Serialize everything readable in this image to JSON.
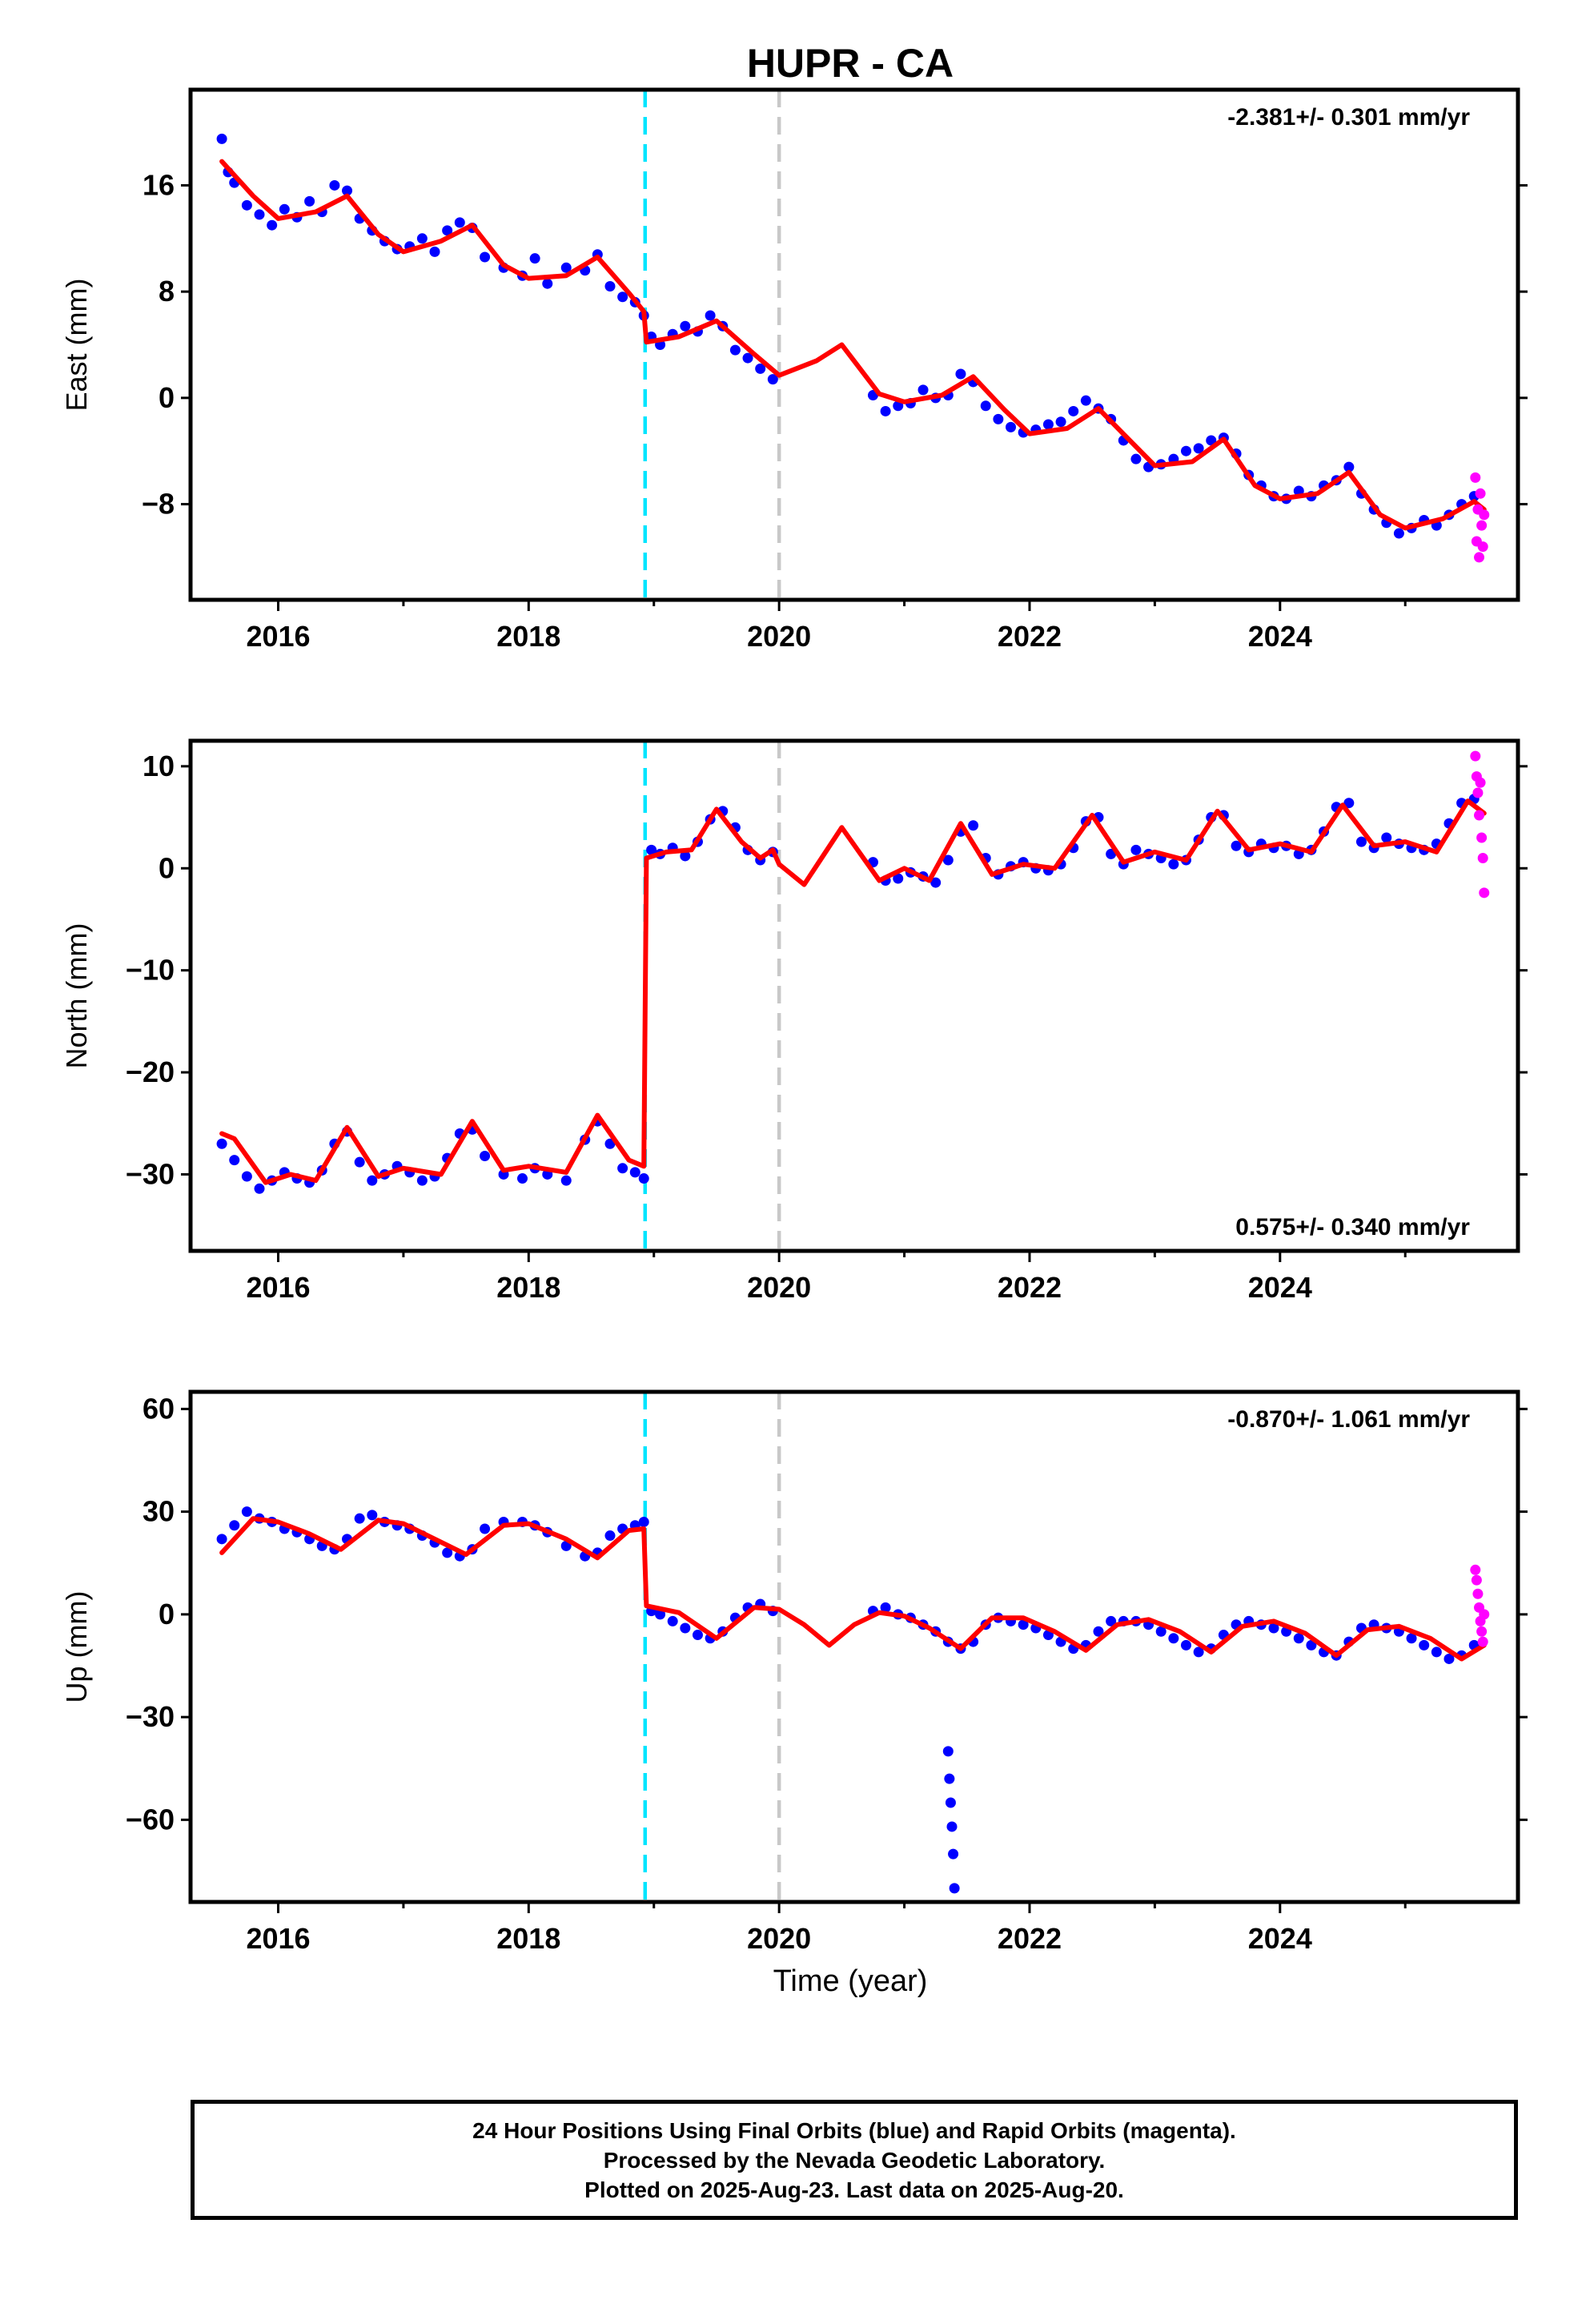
{
  "title": "HUPR - CA",
  "xlabel": "Time (year)",
  "footer": {
    "line1": "24 Hour Positions Using Final Orbits (blue) and Rapid Orbits (magenta).",
    "line2": "Processed by the Nevada Geodetic Laboratory.",
    "line3": "Plotted on 2025-Aug-23. Last data on 2025-Aug-20."
  },
  "colors": {
    "final_points": "#0000ff",
    "rapid_points": "#ff00ff",
    "model": "#ff0000",
    "event_line": "#00e5ff",
    "reference_line": "#c8c8c8"
  },
  "chart_data": [
    {
      "type": "scatter",
      "component": "east",
      "ylabel": "East (mm)",
      "rate_label": "-2.381+/- 0.301 mm/yr",
      "rate_label_position": "top-right",
      "xlim": [
        2015.3,
        2025.9
      ],
      "ylim": [
        -15.2,
        23.2
      ],
      "yticks": [
        -8,
        0,
        8,
        16
      ],
      "ytick_labels": [
        "−8",
        "0",
        "8",
        "16"
      ],
      "xticks": [
        2016,
        2018,
        2020,
        2022,
        2024
      ],
      "xtick_labels": [
        "2016",
        "2018",
        "2020",
        "2022",
        "2024"
      ],
      "event_lines": [
        {
          "x": 2018.93,
          "color": "cyan",
          "style": "dashed"
        },
        {
          "x": 2020.0,
          "color": "gray",
          "style": "dashed"
        }
      ],
      "model": {
        "x": [
          2015.55,
          2015.8,
          2016.0,
          2016.3,
          2016.55,
          2016.8,
          2017.0,
          2017.3,
          2017.55,
          2017.8,
          2018.0,
          2018.3,
          2018.55,
          2018.8,
          2018.92,
          2018.94,
          2019.2,
          2019.5,
          2019.8,
          2020.0,
          2020.3,
          2020.5,
          2020.8,
          2021.0,
          2021.3,
          2021.55,
          2021.8,
          2022.0,
          2022.3,
          2022.55,
          2022.8,
          2023.0,
          2023.3,
          2023.55,
          2023.8,
          2024.0,
          2024.3,
          2024.55,
          2024.8,
          2025.0,
          2025.3,
          2025.55,
          2025.63
        ],
        "y": [
          17.8,
          15.2,
          13.5,
          14.0,
          15.2,
          12.3,
          11.0,
          11.8,
          13.0,
          10.0,
          9.0,
          9.2,
          10.6,
          7.9,
          6.5,
          4.2,
          4.6,
          5.8,
          3.3,
          1.7,
          2.8,
          4.0,
          0.3,
          -0.3,
          0.2,
          1.6,
          -0.9,
          -2.7,
          -2.3,
          -0.8,
          -3.2,
          -5.1,
          -4.8,
          -3.1,
          -6.6,
          -7.6,
          -7.2,
          -5.6,
          -8.8,
          -9.8,
          -9.1,
          -7.8,
          -8.4
        ]
      },
      "final_orbits": {
        "x": [
          2015.55,
          2015.6,
          2015.65,
          2015.75,
          2015.85,
          2015.95,
          2016.05,
          2016.15,
          2016.25,
          2016.35,
          2016.45,
          2016.55,
          2016.65,
          2016.75,
          2016.85,
          2016.95,
          2017.05,
          2017.15,
          2017.25,
          2017.35,
          2017.45,
          2017.55,
          2017.65,
          2017.8,
          2017.95,
          2018.05,
          2018.15,
          2018.3,
          2018.45,
          2018.55,
          2018.65,
          2018.75,
          2018.85,
          2018.92,
          2018.98,
          2019.05,
          2019.15,
          2019.25,
          2019.35,
          2019.45,
          2019.55,
          2019.65,
          2019.75,
          2019.85,
          2019.95,
          2020.75,
          2020.85,
          2020.95,
          2021.05,
          2021.15,
          2021.25,
          2021.35,
          2021.45,
          2021.55,
          2021.65,
          2021.75,
          2021.85,
          2021.95,
          2022.05,
          2022.15,
          2022.25,
          2022.35,
          2022.45,
          2022.55,
          2022.65,
          2022.75,
          2022.85,
          2022.95,
          2023.05,
          2023.15,
          2023.25,
          2023.35,
          2023.45,
          2023.55,
          2023.65,
          2023.75,
          2023.85,
          2023.95,
          2024.05,
          2024.15,
          2024.25,
          2024.35,
          2024.45,
          2024.55,
          2024.65,
          2024.75,
          2024.85,
          2024.95,
          2025.05,
          2025.15,
          2025.25,
          2025.35,
          2025.45,
          2025.55
        ],
        "y": [
          19.5,
          17.0,
          16.2,
          14.5,
          13.8,
          13.0,
          14.2,
          13.6,
          14.8,
          14.0,
          16.0,
          15.6,
          13.5,
          12.6,
          11.8,
          11.2,
          11.4,
          12.0,
          11.0,
          12.6,
          13.2,
          12.8,
          10.6,
          9.8,
          9.2,
          10.5,
          8.6,
          9.8,
          9.6,
          10.8,
          8.4,
          7.6,
          7.2,
          6.2,
          4.6,
          4.0,
          4.8,
          5.4,
          5.0,
          6.2,
          5.4,
          3.6,
          3.0,
          2.2,
          1.4,
          0.2,
          -1.0,
          -0.6,
          -0.4,
          0.6,
          0.0,
          0.2,
          1.8,
          1.2,
          -0.6,
          -1.6,
          -2.2,
          -2.6,
          -2.4,
          -2.0,
          -1.8,
          -1.0,
          -0.2,
          -0.8,
          -1.6,
          -3.2,
          -4.6,
          -5.2,
          -5.0,
          -4.6,
          -4.0,
          -3.8,
          -3.2,
          -3.0,
          -4.2,
          -5.8,
          -6.6,
          -7.4,
          -7.6,
          -7.0,
          -7.4,
          -6.6,
          -6.2,
          -5.2,
          -7.2,
          -8.4,
          -9.4,
          -10.2,
          -9.8,
          -9.2,
          -9.6,
          -8.8,
          -8.0,
          -7.4
        ]
      },
      "rapid_orbits": {
        "x": [
          2025.56,
          2025.57,
          2025.58,
          2025.59,
          2025.6,
          2025.61,
          2025.62,
          2025.63
        ],
        "y": [
          -6.0,
          -10.8,
          -8.4,
          -12.0,
          -7.2,
          -9.6,
          -11.2,
          -8.8
        ]
      }
    },
    {
      "type": "scatter",
      "component": "north",
      "ylabel": "North (mm)",
      "rate_label": "0.575+/- 0.340 mm/yr",
      "rate_label_position": "bottom-right",
      "xlim": [
        2015.3,
        2025.9
      ],
      "ylim": [
        -37.5,
        12.5
      ],
      "yticks": [
        -30,
        -20,
        -10,
        0,
        10
      ],
      "ytick_labels": [
        "−30",
        "−20",
        "−10",
        "0",
        "10"
      ],
      "xticks": [
        2016,
        2018,
        2020,
        2022,
        2024
      ],
      "xtick_labels": [
        "2016",
        "2018",
        "2020",
        "2022",
        "2024"
      ],
      "event_lines": [
        {
          "x": 2018.93,
          "color": "cyan",
          "style": "dashed"
        },
        {
          "x": 2020.0,
          "color": "gray",
          "style": "dashed"
        }
      ],
      "model": {
        "x": [
          2015.55,
          2015.65,
          2015.9,
          2016.1,
          2016.3,
          2016.55,
          2016.8,
          2017.0,
          2017.3,
          2017.55,
          2017.8,
          2018.0,
          2018.3,
          2018.55,
          2018.8,
          2018.92,
          2018.94,
          2019.1,
          2019.3,
          2019.5,
          2019.7,
          2019.85,
          2019.95,
          2020.0,
          2020.2,
          2020.5,
          2020.8,
          2021.0,
          2021.2,
          2021.45,
          2021.7,
          2021.95,
          2022.2,
          2022.5,
          2022.75,
          2023.0,
          2023.25,
          2023.5,
          2023.75,
          2024.0,
          2024.25,
          2024.5,
          2024.75,
          2025.0,
          2025.25,
          2025.5,
          2025.63
        ],
        "y": [
          -26.0,
          -26.5,
          -30.8,
          -30.0,
          -30.6,
          -25.4,
          -30.2,
          -29.4,
          -30.0,
          -24.8,
          -29.6,
          -29.2,
          -29.8,
          -24.2,
          -28.6,
          -29.2,
          1.0,
          1.6,
          1.8,
          5.8,
          2.6,
          1.0,
          1.8,
          0.4,
          -1.6,
          4.0,
          -1.2,
          0.0,
          -1.2,
          4.4,
          -0.6,
          0.4,
          0.0,
          5.2,
          0.6,
          1.6,
          0.8,
          5.6,
          1.8,
          2.4,
          1.6,
          6.2,
          2.2,
          2.6,
          1.6,
          6.6,
          5.4
        ]
      },
      "final_orbits": {
        "x": [
          2015.55,
          2015.65,
          2015.75,
          2015.85,
          2015.95,
          2016.05,
          2016.15,
          2016.25,
          2016.35,
          2016.45,
          2016.55,
          2016.65,
          2016.75,
          2016.85,
          2016.95,
          2017.05,
          2017.15,
          2017.25,
          2017.35,
          2017.45,
          2017.55,
          2017.65,
          2017.8,
          2017.95,
          2018.05,
          2018.15,
          2018.3,
          2018.45,
          2018.55,
          2018.65,
          2018.75,
          2018.85,
          2018.92,
          2018.98,
          2019.05,
          2019.15,
          2019.25,
          2019.35,
          2019.45,
          2019.55,
          2019.65,
          2019.75,
          2019.85,
          2019.95,
          2020.75,
          2020.85,
          2020.95,
          2021.05,
          2021.15,
          2021.25,
          2021.35,
          2021.45,
          2021.55,
          2021.65,
          2021.75,
          2021.85,
          2021.95,
          2022.05,
          2022.15,
          2022.25,
          2022.35,
          2022.45,
          2022.55,
          2022.65,
          2022.75,
          2022.85,
          2022.95,
          2023.05,
          2023.15,
          2023.25,
          2023.35,
          2023.45,
          2023.55,
          2023.65,
          2023.75,
          2023.85,
          2023.95,
          2024.05,
          2024.15,
          2024.25,
          2024.35,
          2024.45,
          2024.55,
          2024.65,
          2024.75,
          2024.85,
          2024.95,
          2025.05,
          2025.15,
          2025.25,
          2025.35,
          2025.45,
          2025.55
        ],
        "y": [
          -27.0,
          -28.6,
          -30.2,
          -31.4,
          -30.6,
          -29.8,
          -30.4,
          -30.8,
          -29.6,
          -27.0,
          -25.8,
          -28.8,
          -30.6,
          -30.0,
          -29.2,
          -29.8,
          -30.6,
          -30.2,
          -28.4,
          -26.0,
          -25.6,
          -28.2,
          -30.0,
          -30.4,
          -29.4,
          -30.0,
          -30.6,
          -26.6,
          -24.8,
          -27.0,
          -29.4,
          -29.8,
          -30.4,
          1.8,
          1.4,
          2.0,
          1.2,
          2.6,
          4.8,
          5.6,
          4.0,
          1.8,
          0.8,
          1.6,
          0.6,
          -1.2,
          -1.0,
          -0.4,
          -0.8,
          -1.4,
          0.8,
          3.6,
          4.2,
          1.0,
          -0.6,
          0.2,
          0.6,
          0.0,
          -0.2,
          0.4,
          2.0,
          4.6,
          5.0,
          1.4,
          0.4,
          1.8,
          1.4,
          1.0,
          0.4,
          0.8,
          2.8,
          5.0,
          5.2,
          2.2,
          1.6,
          2.4,
          2.0,
          2.2,
          1.4,
          1.8,
          3.6,
          6.0,
          6.4,
          2.6,
          2.0,
          3.0,
          2.4,
          2.0,
          1.8,
          2.4,
          4.4,
          6.4,
          6.8
        ]
      },
      "rapid_orbits": {
        "x": [
          2025.56,
          2025.57,
          2025.58,
          2025.59,
          2025.6,
          2025.61,
          2025.62,
          2025.63
        ],
        "y": [
          11.0,
          9.0,
          7.4,
          5.2,
          8.4,
          3.0,
          1.0,
          -2.4
        ]
      }
    },
    {
      "type": "scatter",
      "component": "up",
      "ylabel": "Up (mm)",
      "rate_label": "-0.870+/- 1.061 mm/yr",
      "rate_label_position": "top-right",
      "xlim": [
        2015.3,
        2025.9
      ],
      "ylim": [
        -84.0,
        65.0
      ],
      "yticks": [
        -60,
        -30,
        0,
        30,
        60
      ],
      "ytick_labels": [
        "−60",
        "−30",
        "0",
        "30",
        "60"
      ],
      "xticks": [
        2016,
        2018,
        2020,
        2022,
        2024
      ],
      "xtick_labels": [
        "2016",
        "2018",
        "2020",
        "2022",
        "2024"
      ],
      "event_lines": [
        {
          "x": 2018.93,
          "color": "cyan",
          "style": "dashed"
        },
        {
          "x": 2020.0,
          "color": "gray",
          "style": "dashed"
        }
      ],
      "model": {
        "x": [
          2015.55,
          2015.8,
          2016.0,
          2016.25,
          2016.5,
          2016.8,
          2017.0,
          2017.25,
          2017.5,
          2017.8,
          2018.0,
          2018.3,
          2018.55,
          2018.8,
          2018.92,
          2018.94,
          2019.2,
          2019.5,
          2019.8,
          2020.0,
          2020.2,
          2020.4,
          2020.6,
          2020.8,
          2021.0,
          2021.2,
          2021.45,
          2021.7,
          2021.95,
          2022.2,
          2022.45,
          2022.7,
          2022.95,
          2023.2,
          2023.45,
          2023.7,
          2023.95,
          2024.2,
          2024.45,
          2024.7,
          2024.95,
          2025.2,
          2025.45,
          2025.63
        ],
        "y": [
          18.0,
          28.0,
          27.0,
          23.5,
          19.0,
          27.5,
          26.5,
          22.0,
          17.5,
          26.0,
          26.5,
          22.0,
          16.5,
          24.5,
          25.0,
          2.5,
          0.5,
          -7.0,
          2.0,
          1.5,
          -3.0,
          -9.0,
          -3.0,
          0.5,
          -0.5,
          -4.0,
          -10.0,
          -1.0,
          -1.0,
          -5.0,
          -10.5,
          -3.0,
          -1.5,
          -5.0,
          -11.0,
          -3.5,
          -2.0,
          -5.5,
          -12.0,
          -4.5,
          -3.5,
          -7.0,
          -13.0,
          -9.0
        ]
      },
      "final_orbits": {
        "x": [
          2015.55,
          2015.65,
          2015.75,
          2015.85,
          2015.95,
          2016.05,
          2016.15,
          2016.25,
          2016.35,
          2016.45,
          2016.55,
          2016.65,
          2016.75,
          2016.85,
          2016.95,
          2017.05,
          2017.15,
          2017.25,
          2017.35,
          2017.45,
          2017.55,
          2017.65,
          2017.8,
          2017.95,
          2018.05,
          2018.15,
          2018.3,
          2018.45,
          2018.55,
          2018.65,
          2018.75,
          2018.85,
          2018.92,
          2018.98,
          2019.05,
          2019.15,
          2019.25,
          2019.35,
          2019.45,
          2019.55,
          2019.65,
          2019.75,
          2019.85,
          2019.95,
          2020.75,
          2020.85,
          2020.95,
          2021.05,
          2021.15,
          2021.25,
          2021.35,
          2021.45,
          2021.55,
          2021.65,
          2021.75,
          2021.85,
          2021.95,
          2022.05,
          2022.15,
          2022.25,
          2022.35,
          2022.45,
          2022.55,
          2022.65,
          2022.75,
          2022.85,
          2022.95,
          2023.05,
          2023.15,
          2023.25,
          2023.35,
          2023.45,
          2023.55,
          2023.65,
          2023.75,
          2023.85,
          2023.95,
          2024.05,
          2024.15,
          2024.25,
          2024.35,
          2024.45,
          2024.55,
          2024.65,
          2024.75,
          2024.85,
          2024.95,
          2025.05,
          2025.15,
          2025.25,
          2025.35,
          2025.45,
          2025.55,
          2021.35,
          2021.36,
          2021.37,
          2021.38,
          2021.39,
          2021.4
        ],
        "y": [
          22.0,
          26.0,
          30.0,
          28.0,
          27.0,
          25.0,
          24.0,
          22.0,
          20.0,
          19.0,
          22.0,
          28.0,
          29.0,
          27.0,
          26.0,
          25.0,
          23.0,
          21.0,
          18.0,
          17.0,
          19.0,
          25.0,
          27.0,
          27.0,
          26.0,
          24.0,
          20.0,
          17.0,
          18.0,
          23.0,
          25.0,
          26.0,
          27.0,
          1.0,
          0.0,
          -2.0,
          -4.0,
          -6.0,
          -7.0,
          -5.0,
          -1.0,
          2.0,
          3.0,
          1.0,
          1.0,
          2.0,
          0.0,
          -1.0,
          -3.0,
          -5.0,
          -8.0,
          -10.0,
          -8.0,
          -3.0,
          -1.0,
          -2.0,
          -3.0,
          -4.0,
          -6.0,
          -8.0,
          -10.0,
          -9.0,
          -5.0,
          -2.0,
          -2.0,
          -2.0,
          -3.0,
          -5.0,
          -7.0,
          -9.0,
          -11.0,
          -10.0,
          -6.0,
          -3.0,
          -2.0,
          -3.0,
          -4.0,
          -5.0,
          -7.0,
          -9.0,
          -11.0,
          -12.0,
          -8.0,
          -4.0,
          -3.0,
          -4.0,
          -5.0,
          -7.0,
          -9.0,
          -11.0,
          -13.0,
          -12.0,
          -9.0,
          -40.0,
          -48.0,
          -55.0,
          -62.0,
          -70.0,
          -80.0
        ]
      },
      "rapid_orbits": {
        "x": [
          2025.56,
          2025.57,
          2025.58,
          2025.59,
          2025.6,
          2025.61,
          2025.62,
          2025.63
        ],
        "y": [
          13.0,
          10.0,
          6.0,
          2.0,
          -2.0,
          -5.0,
          -8.0,
          0.0
        ]
      }
    }
  ]
}
